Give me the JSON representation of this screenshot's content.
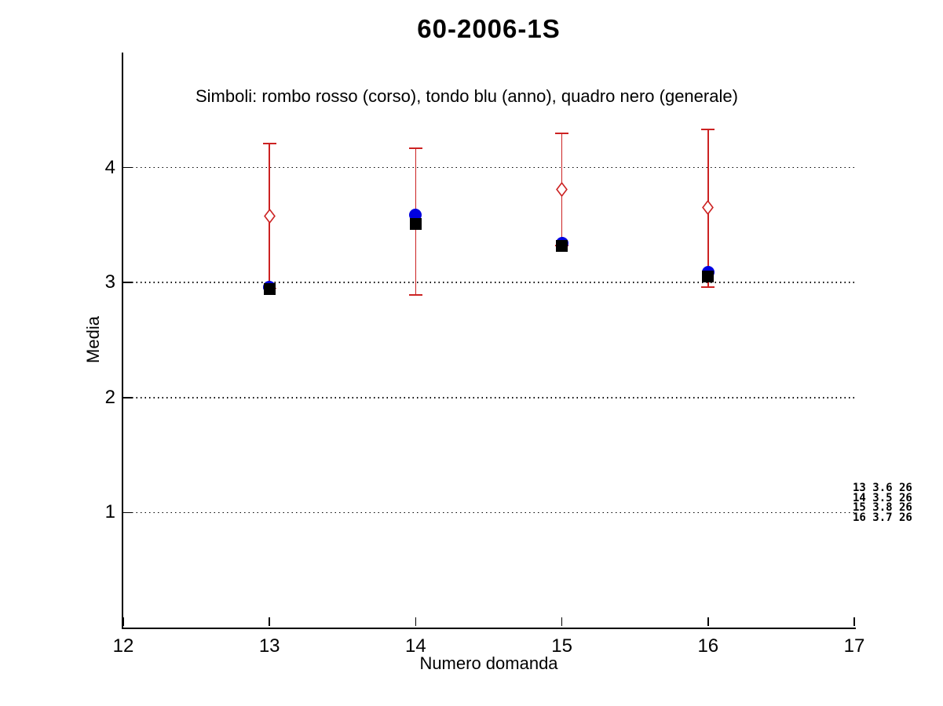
{
  "title": "60-2006-1S",
  "subtitle": "Simboli: rombo rosso (corso), tondo blu (anno), quadro nero (generale)",
  "colors": {
    "corso_red": "#cc2222",
    "anno_blue": "#0000e0",
    "generale_black": "#000000",
    "axis": "#000000"
  },
  "chart_data": {
    "type": "scatter",
    "title": "60-2006-1S",
    "subtitle": "Simboli: rombo rosso (corso), tondo blu (anno), quadro nero (generale)",
    "xlabel": "Numero domanda",
    "ylabel": "Media",
    "xlim": [
      12,
      17
    ],
    "ylim": [
      0,
      5
    ],
    "x_ticks": [
      12,
      13,
      14,
      15,
      16,
      17
    ],
    "y_ticks": [
      1,
      2,
      3,
      4
    ],
    "grid": "dotted horizontal at y ticks",
    "legend_position": "none",
    "x": [
      13,
      14,
      15,
      16
    ],
    "series": [
      {
        "name": "corso",
        "marker": "diamond-open",
        "color": "#cc2222",
        "values": [
          3.58,
          3.53,
          3.81,
          3.65
        ],
        "err_low": [
          2.95,
          2.89,
          3.32,
          2.96
        ],
        "err_high": [
          4.21,
          4.17,
          4.3,
          4.33
        ]
      },
      {
        "name": "anno",
        "marker": "circle-filled",
        "color": "#0000e0",
        "values": [
          2.96,
          3.59,
          3.34,
          3.09
        ]
      },
      {
        "name": "generale",
        "marker": "square-filled",
        "color": "#000000",
        "values": [
          2.94,
          3.51,
          3.32,
          3.05
        ]
      }
    ],
    "annotation": {
      "lines": [
        "13 3.6 26",
        "14 3.5 26",
        "15 3.8 26",
        "16 3.7 26"
      ]
    }
  }
}
